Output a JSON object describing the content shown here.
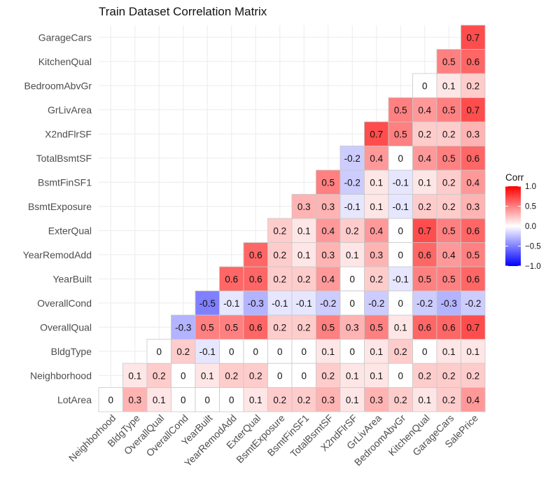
{
  "chart_data": {
    "type": "heatmap",
    "title": "Train Dataset Correlation Matrix",
    "x_categories": [
      "Neighborhood",
      "BldgType",
      "OverallQual",
      "OverallCond",
      "YearBuilt",
      "YearRemodAdd",
      "ExterQual",
      "BsmtExposure",
      "BsmtFinSF1",
      "TotalBsmtSF",
      "X2ndFlrSF",
      "GrLivArea",
      "BedroomAbvGr",
      "KitchenQual",
      "GarageCars",
      "SalePrice"
    ],
    "y_categories": [
      "LotArea",
      "Neighborhood",
      "BldgType",
      "OverallQual",
      "OverallCond",
      "YearBuilt",
      "YearRemodAdd",
      "ExterQual",
      "BsmtExposure",
      "BsmtFinSF1",
      "TotalBsmtSF",
      "X2ndFlrSF",
      "GrLivArea",
      "BedroomAbvGr",
      "KitchenQual",
      "GarageCars"
    ],
    "values": [
      [
        0,
        0.3,
        0.1,
        0,
        0,
        0,
        0.1,
        0.2,
        0.2,
        0.3,
        0.1,
        0.3,
        0.2,
        0.1,
        0.2,
        0.4
      ],
      [
        null,
        0.1,
        0.2,
        0,
        0.1,
        0.2,
        0.2,
        0,
        0,
        0.2,
        0.1,
        0.1,
        0,
        0.2,
        0.2,
        0.2
      ],
      [
        null,
        null,
        0,
        0.2,
        -0.1,
        0,
        0,
        0,
        0,
        0.1,
        0,
        0.1,
        0.2,
        0,
        0.1,
        0.1
      ],
      [
        null,
        null,
        null,
        -0.3,
        0.5,
        0.5,
        0.6,
        0.2,
        0.2,
        0.5,
        0.3,
        0.5,
        0.1,
        0.6,
        0.6,
        0.7
      ],
      [
        null,
        null,
        null,
        null,
        -0.5,
        -0.1,
        -0.3,
        -0.1,
        -0.1,
        -0.2,
        0,
        -0.2,
        0,
        -0.2,
        -0.3,
        -0.2
      ],
      [
        null,
        null,
        null,
        null,
        null,
        0.6,
        0.6,
        0.2,
        0.2,
        0.4,
        0,
        0.2,
        -0.1,
        0.5,
        0.5,
        0.6
      ],
      [
        null,
        null,
        null,
        null,
        null,
        null,
        0.6,
        0.2,
        0.1,
        0.3,
        0.1,
        0.3,
        0,
        0.6,
        0.4,
        0.5
      ],
      [
        null,
        null,
        null,
        null,
        null,
        null,
        null,
        0.2,
        0.1,
        0.4,
        0.2,
        0.4,
        0,
        0.7,
        0.5,
        0.6
      ],
      [
        null,
        null,
        null,
        null,
        null,
        null,
        null,
        null,
        0.3,
        0.3,
        -0.1,
        0.1,
        -0.1,
        0.2,
        0.2,
        0.3
      ],
      [
        null,
        null,
        null,
        null,
        null,
        null,
        null,
        null,
        null,
        0.5,
        -0.2,
        0.1,
        -0.1,
        0.1,
        0.2,
        0.4
      ],
      [
        null,
        null,
        null,
        null,
        null,
        null,
        null,
        null,
        null,
        null,
        -0.2,
        0.4,
        0,
        0.4,
        0.5,
        0.6
      ],
      [
        null,
        null,
        null,
        null,
        null,
        null,
        null,
        null,
        null,
        null,
        null,
        0.7,
        0.5,
        0.2,
        0.2,
        0.3
      ],
      [
        null,
        null,
        null,
        null,
        null,
        null,
        null,
        null,
        null,
        null,
        null,
        null,
        0.5,
        0.4,
        0.5,
        0.7
      ],
      [
        null,
        null,
        null,
        null,
        null,
        null,
        null,
        null,
        null,
        null,
        null,
        null,
        null,
        0,
        0.1,
        0.2
      ],
      [
        null,
        null,
        null,
        null,
        null,
        null,
        null,
        null,
        null,
        null,
        null,
        null,
        null,
        null,
        0.5,
        0.6
      ],
      [
        null,
        null,
        null,
        null,
        null,
        null,
        null,
        null,
        null,
        null,
        null,
        null,
        null,
        null,
        null,
        0.7
      ]
    ],
    "value_range": [
      -1,
      1
    ],
    "colors": {
      "low": "#0000ff",
      "mid": "#ffffff",
      "high": "#ff0000"
    },
    "legend": {
      "title": "Corr",
      "ticks": [
        1.0,
        0.5,
        0.0,
        -0.5,
        -1.0
      ],
      "tick_labels": [
        "1.0",
        "0.5",
        "0.0",
        "−0.5",
        "−1.0"
      ],
      "placement": "right"
    },
    "grid": true,
    "xlabel": "",
    "ylabel": ""
  }
}
